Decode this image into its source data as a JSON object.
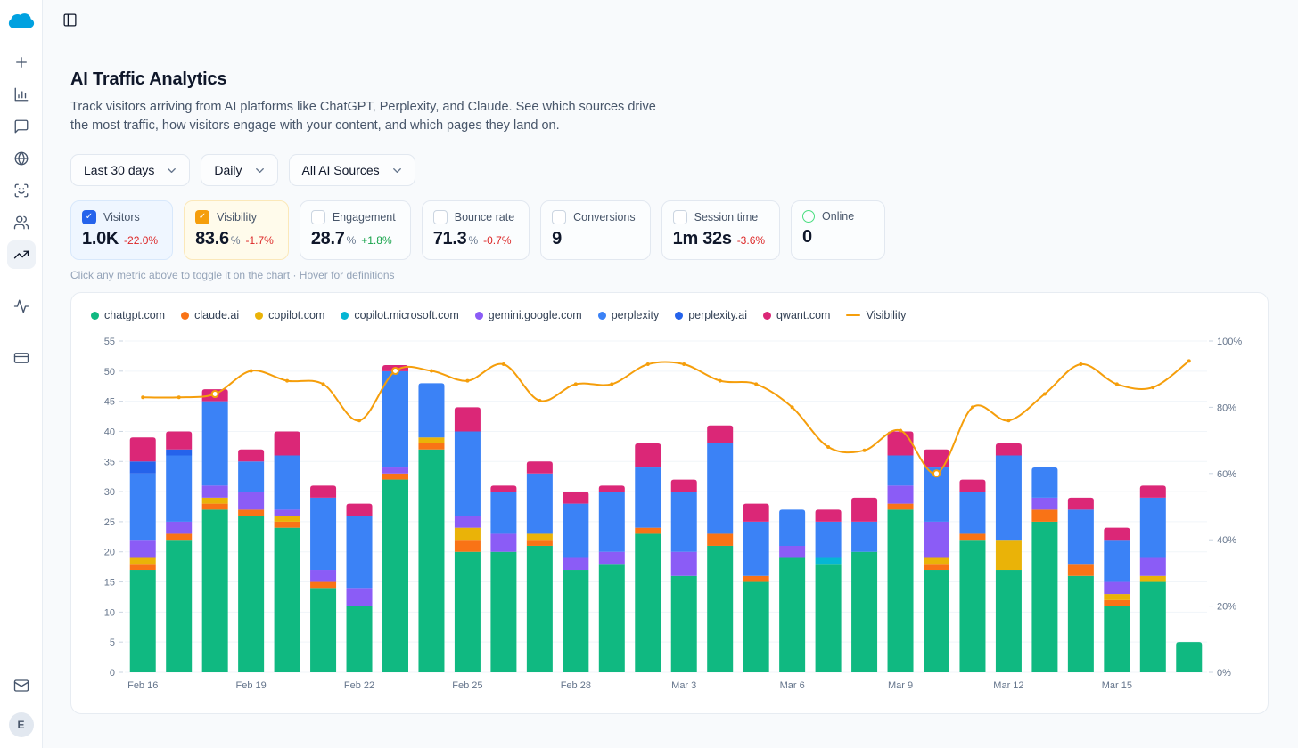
{
  "sidebar": {
    "logo_icon": "cloud-logo",
    "items": [
      {
        "id": "new",
        "icon": "plus-icon",
        "active": false
      },
      {
        "id": "analytics",
        "icon": "bar-chart-icon",
        "active": false
      },
      {
        "id": "messages",
        "icon": "chat-icon",
        "active": false
      },
      {
        "id": "web",
        "icon": "globe-icon",
        "active": false
      },
      {
        "id": "identity",
        "icon": "face-scan-icon",
        "active": false
      },
      {
        "id": "audience",
        "icon": "users-icon",
        "active": false
      },
      {
        "id": "ai-traffic",
        "icon": "trending-up-icon",
        "active": true
      },
      {
        "id": "activity",
        "icon": "activity-icon",
        "active": false
      },
      {
        "id": "billing",
        "icon": "credit-card-icon",
        "active": false
      }
    ],
    "bottom_items": [
      {
        "id": "inbox",
        "icon": "mail-icon"
      }
    ],
    "avatar": "E"
  },
  "header": {
    "toggle_icon": "panel-left-icon"
  },
  "main": {
    "title": "AI Traffic Analytics",
    "subtitle": "Track visitors arriving from AI platforms like ChatGPT, Perplexity, and Claude. See which sources drive the most traffic, how visitors engage with your content, and which pages they land on.",
    "filters": [
      {
        "id": "date-range",
        "label": "Last 30 days"
      },
      {
        "id": "granularity",
        "label": "Daily"
      },
      {
        "id": "sources",
        "label": "All AI Sources"
      }
    ],
    "metrics": [
      {
        "id": "visitors",
        "label": "Visitors",
        "value": "1.0K",
        "delta": "-22.0%",
        "checked": true,
        "accent": "#2563eb",
        "tint": "blue"
      },
      {
        "id": "visibility",
        "label": "Visibility",
        "value": "83.6",
        "unit": "%",
        "delta": "-1.7%",
        "checked": true,
        "accent": "#f59e0b",
        "tint": "amber"
      },
      {
        "id": "engagement",
        "label": "Engagement",
        "value": "28.7",
        "unit": "%",
        "delta": "+1.8%",
        "checked": false
      },
      {
        "id": "bounce-rate",
        "label": "Bounce rate",
        "value": "71.3",
        "unit": "%",
        "delta": "-0.7%",
        "checked": false
      },
      {
        "id": "conversions",
        "label": "Conversions",
        "value": "9",
        "checked": false
      },
      {
        "id": "session-time",
        "label": "Session time",
        "value": "1m 32s",
        "delta": "-3.6%",
        "checked": false
      },
      {
        "id": "online",
        "label": "Online",
        "value": "0",
        "indicator": "circle",
        "indicator_color": "#4ade80"
      }
    ],
    "hint": "Click any metric above to toggle it on the chart · Hover for definitions"
  },
  "chart_data": {
    "type": "bar",
    "stacked": true,
    "x": [
      "Feb 16",
      "Feb 17",
      "Feb 18",
      "Feb 19",
      "Feb 20",
      "Feb 21",
      "Feb 22",
      "Feb 23",
      "Feb 24",
      "Feb 25",
      "Feb 26",
      "Feb 27",
      "Feb 28",
      "Mar 1",
      "Mar 2",
      "Mar 3",
      "Mar 4",
      "Mar 5",
      "Mar 6",
      "Mar 7",
      "Mar 8",
      "Mar 9",
      "Mar 10",
      "Mar 11",
      "Mar 12",
      "Mar 13",
      "Mar 14",
      "Mar 15",
      "Mar 16",
      "Mar 17"
    ],
    "x_tick_every": 3,
    "y_left": {
      "min": 0,
      "max": 55,
      "step": 5
    },
    "y_right": {
      "min": 0,
      "max": 100,
      "step": 20,
      "suffix": "%"
    },
    "grid": true,
    "legend_position": "top-left",
    "series": [
      {
        "name": "chatgpt.com",
        "color": "#10b981",
        "values": [
          17,
          22,
          27,
          26,
          24,
          14,
          11,
          32,
          37,
          20,
          20,
          21,
          17,
          18,
          23,
          16,
          21,
          15,
          19,
          18,
          20,
          27,
          17,
          22,
          17,
          25,
          16,
          11,
          15,
          5
        ]
      },
      {
        "name": "claude.ai",
        "color": "#f97316",
        "values": [
          1,
          1,
          1,
          1,
          1,
          1,
          0,
          1,
          1,
          2,
          0,
          1,
          0,
          0,
          1,
          0,
          2,
          1,
          0,
          0,
          0,
          1,
          1,
          1,
          0,
          2,
          2,
          1,
          0,
          0
        ]
      },
      {
        "name": "copilot.com",
        "color": "#eab308",
        "values": [
          1,
          0,
          1,
          0,
          1,
          0,
          0,
          0,
          1,
          2,
          0,
          1,
          0,
          0,
          0,
          0,
          0,
          0,
          0,
          0,
          0,
          0,
          1,
          0,
          5,
          0,
          0,
          1,
          1,
          0
        ]
      },
      {
        "name": "copilot.microsoft.com",
        "color": "#06b6d4",
        "values": [
          0,
          0,
          0,
          0,
          0,
          0,
          0,
          0,
          0,
          0,
          0,
          0,
          0,
          0,
          0,
          0,
          0,
          0,
          0,
          1,
          0,
          0,
          0,
          0,
          0,
          0,
          0,
          0,
          0,
          0
        ]
      },
      {
        "name": "gemini.google.com",
        "color": "#8b5cf6",
        "values": [
          3,
          2,
          2,
          3,
          1,
          2,
          3,
          1,
          0,
          2,
          3,
          0,
          2,
          2,
          0,
          4,
          0,
          0,
          2,
          0,
          0,
          3,
          6,
          0,
          0,
          2,
          0,
          2,
          3,
          0
        ]
      },
      {
        "name": "perplexity",
        "color": "#3b82f6",
        "values": [
          11,
          11,
          14,
          5,
          9,
          12,
          12,
          16,
          9,
          14,
          7,
          10,
          9,
          10,
          10,
          10,
          15,
          9,
          6,
          6,
          5,
          5,
          9,
          7,
          14,
          5,
          9,
          7,
          10,
          0
        ]
      },
      {
        "name": "perplexity.ai",
        "color": "#2563eb",
        "values": [
          2,
          1,
          0,
          0,
          0,
          0,
          0,
          0,
          0,
          0,
          0,
          0,
          0,
          0,
          0,
          0,
          0,
          0,
          0,
          0,
          0,
          0,
          0,
          0,
          0,
          0,
          0,
          0,
          0,
          0
        ]
      },
      {
        "name": "qwant.com",
        "color": "#db2777",
        "values": [
          4,
          3,
          2,
          2,
          4,
          2,
          2,
          1,
          0,
          4,
          1,
          2,
          2,
          1,
          4,
          2,
          3,
          3,
          0,
          2,
          4,
          4,
          3,
          2,
          2,
          0,
          2,
          2,
          2,
          0
        ]
      }
    ],
    "line_series": {
      "name": "Visibility",
      "color": "#f59e0b",
      "axis": "right",
      "values": [
        83,
        83,
        84,
        91,
        88,
        87,
        76,
        91,
        91,
        88,
        93,
        82,
        87,
        87,
        93,
        93,
        88,
        87,
        80,
        68,
        67,
        73,
        60,
        80,
        76,
        84,
        93,
        87,
        86,
        94
      ],
      "ring_markers": [
        2,
        7,
        22
      ]
    }
  }
}
